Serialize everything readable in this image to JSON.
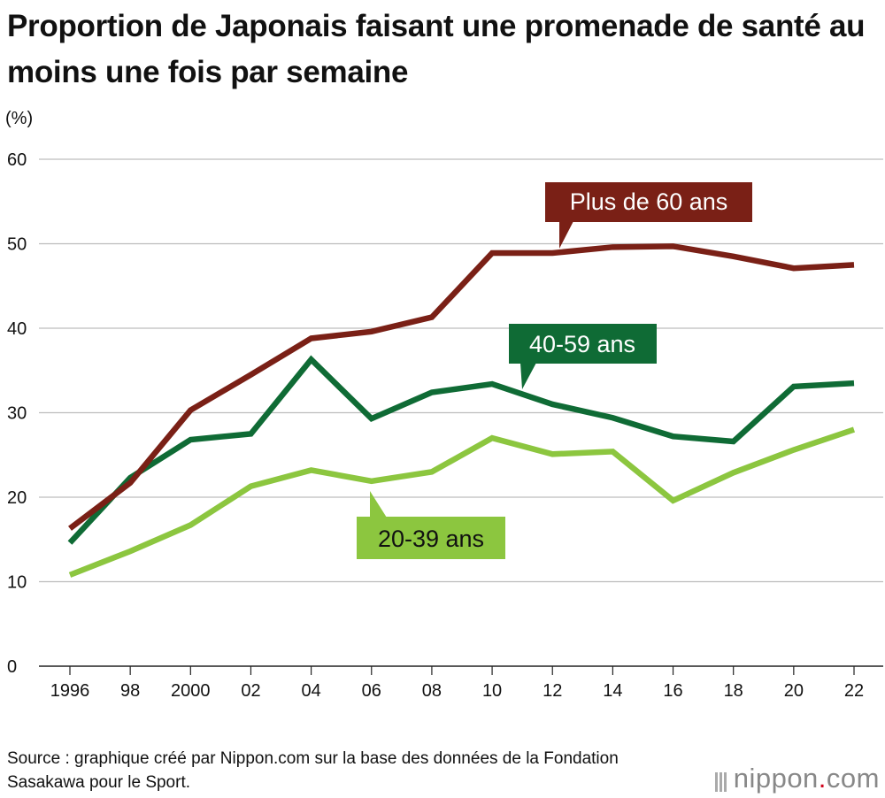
{
  "title": "Proportion de Japonais faisant une promenade de santé au moins une fois par semaine",
  "source": "Source : graphique créé par Nippon.com sur la base des données de la Fondation Sasakawa pour le Sport.",
  "logo": {
    "name": "nippon",
    "dot": ".",
    "suffix": "com",
    "dot_color": "#d0021b"
  },
  "chart_data": {
    "type": "line",
    "ylabel": "(%)",
    "ylim": [
      0,
      60
    ],
    "yticks": [
      0,
      10,
      20,
      30,
      40,
      50,
      60
    ],
    "x": [
      1996,
      1998,
      2000,
      2002,
      2004,
      2006,
      2008,
      2010,
      2012,
      2014,
      2016,
      2018,
      2020,
      2022
    ],
    "xtick_labels": [
      "1996",
      "98",
      "2000",
      "02",
      "04",
      "06",
      "08",
      "10",
      "12",
      "14",
      "16",
      "18",
      "20",
      "22"
    ],
    "grid": true,
    "series": [
      {
        "name": "Plus de 60 ans",
        "color": "#7a2016",
        "values": [
          16.3,
          21.7,
          30.3,
          34.5,
          38.8,
          39.6,
          41.3,
          48.9,
          48.9,
          49.6,
          49.7,
          48.5,
          47.1,
          47.5
        ]
      },
      {
        "name": "40-59 ans",
        "color": "#0f6b35",
        "values": [
          14.6,
          22.3,
          26.8,
          27.5,
          36.3,
          29.3,
          32.4,
          33.4,
          31.0,
          29.4,
          27.2,
          26.6,
          33.1,
          33.5
        ]
      },
      {
        "name": "20-39 ans",
        "color": "#8cc63f",
        "values": [
          10.8,
          13.6,
          16.7,
          21.3,
          23.2,
          21.9,
          23.0,
          27.0,
          25.1,
          25.4,
          19.6,
          22.9,
          25.6,
          28.0
        ]
      }
    ]
  }
}
